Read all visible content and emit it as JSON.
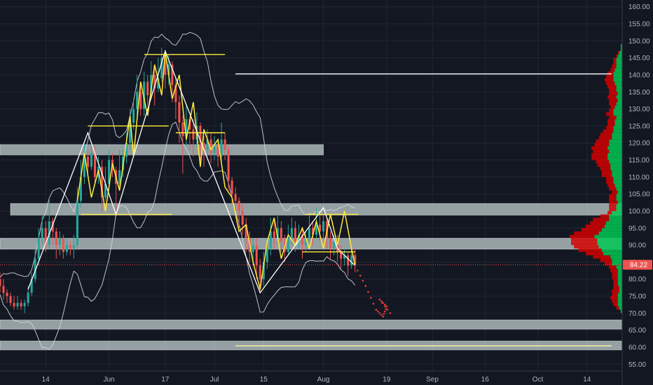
{
  "chart_data": {
    "type": "candlestick",
    "ylim": [
      53,
      162
    ],
    "y_ticks": [
      "55.00",
      "60.00",
      "65.00",
      "70.00",
      "75.00",
      "80.00",
      "85.00",
      "90.00",
      "95.00",
      "100.00",
      "105.00",
      "110.00",
      "115.00",
      "120.00",
      "125.00",
      "130.00",
      "135.00",
      "140.00",
      "145.00",
      "150.00",
      "155.00",
      "160.00"
    ],
    "x_ticks": [
      {
        "label": "14",
        "day": 13
      },
      {
        "label": "Jun",
        "day": 31
      },
      {
        "label": "17",
        "day": 47
      },
      {
        "label": "Jul",
        "day": 61
      },
      {
        "label": "15",
        "day": 75
      },
      {
        "label": "Aug",
        "day": 92
      },
      {
        "label": "19",
        "day": 110
      },
      {
        "label": "Sep",
        "day": 123
      },
      {
        "label": "16",
        "day": 138
      },
      {
        "label": "Oct",
        "day": 153
      },
      {
        "label": "14",
        "day": 167
      }
    ],
    "x_domain": [
      0,
      177
    ],
    "last_price": "84.22",
    "colors": {
      "up": "#26a69a",
      "down": "#ef5350",
      "background": "#131722",
      "grid": "#232632",
      "zone": "#c8d6d6",
      "trend": "#ffeb3b",
      "bands": "#d1d4dc",
      "projection": "#e53935",
      "volume_up": "#00c853",
      "volume_down": "#d50000"
    },
    "zones": [
      {
        "low": 116.5,
        "high": 119.5,
        "from": 0,
        "to": 92
      },
      {
        "low": 98.8,
        "high": 102.2,
        "from": 3,
        "to": 177
      },
      {
        "low": 88.8,
        "high": 92.0,
        "from": 0,
        "to": 177
      },
      {
        "low": 65.3,
        "high": 68.0,
        "from": 0,
        "to": 177
      },
      {
        "low": 59.2,
        "high": 61.8,
        "from": 0,
        "to": 177
      }
    ],
    "levels": [
      {
        "price": 140.3,
        "from": 67,
        "to": 174,
        "color": "#ffffff"
      },
      {
        "price": 60.4,
        "from": 67,
        "to": 174,
        "color": "#fff59d"
      }
    ],
    "candles": [
      [
        0,
        80,
        78,
        82,
        76
      ],
      [
        1,
        78,
        76,
        80,
        74
      ],
      [
        2,
        76,
        75,
        77,
        73
      ],
      [
        3,
        75,
        73,
        76,
        72
      ],
      [
        4,
        73,
        72,
        75,
        71
      ],
      [
        5,
        72,
        73,
        75,
        71
      ],
      [
        6,
        73,
        72,
        74,
        71
      ],
      [
        7,
        72,
        73,
        74,
        70
      ],
      [
        8,
        73,
        76,
        78,
        72
      ],
      [
        9,
        76,
        80,
        82,
        75
      ],
      [
        10,
        80,
        86,
        89,
        79
      ],
      [
        11,
        86,
        92,
        95,
        84
      ],
      [
        12,
        92,
        95,
        99,
        90
      ],
      [
        13,
        95,
        90,
        97,
        88
      ],
      [
        14,
        90,
        97,
        104,
        89
      ],
      [
        15,
        97,
        94,
        98,
        90
      ],
      [
        16,
        94,
        90,
        95,
        86
      ],
      [
        17,
        90,
        92,
        94,
        87
      ],
      [
        18,
        92,
        88,
        93,
        86
      ],
      [
        19,
        88,
        90,
        92,
        87
      ],
      [
        20,
        90,
        89,
        91,
        87
      ],
      [
        21,
        89,
        90,
        93,
        86
      ],
      [
        22,
        90,
        103,
        107,
        89
      ],
      [
        23,
        103,
        110,
        115,
        101
      ],
      [
        24,
        110,
        116,
        120,
        108
      ],
      [
        25,
        116,
        113,
        118,
        110
      ],
      [
        26,
        113,
        117,
        120,
        112
      ],
      [
        27,
        117,
        110,
        119,
        108
      ],
      [
        28,
        110,
        113,
        116,
        108
      ],
      [
        29,
        113,
        104,
        115,
        100
      ],
      [
        30,
        104,
        108,
        113,
        103
      ],
      [
        31,
        108,
        115,
        118,
        106
      ],
      [
        32,
        115,
        112,
        117,
        110
      ],
      [
        33,
        112,
        108,
        113,
        100
      ],
      [
        34,
        108,
        112,
        118,
        107
      ],
      [
        35,
        112,
        116,
        118,
        110
      ],
      [
        36,
        116,
        120,
        123,
        114
      ],
      [
        37,
        120,
        126,
        130,
        118
      ],
      [
        38,
        126,
        130,
        133,
        124
      ],
      [
        39,
        130,
        135,
        140,
        128
      ],
      [
        40,
        135,
        130,
        138,
        128
      ],
      [
        41,
        130,
        138,
        141,
        128
      ],
      [
        42,
        138,
        134,
        140,
        131
      ],
      [
        43,
        134,
        140,
        144,
        133
      ],
      [
        44,
        140,
        136,
        142,
        131
      ],
      [
        45,
        136,
        139,
        145,
        135
      ],
      [
        46,
        139,
        145,
        148,
        138
      ],
      [
        47,
        145,
        140,
        146,
        136
      ],
      [
        48,
        140,
        143,
        146,
        137
      ],
      [
        49,
        143,
        137,
        144,
        132
      ],
      [
        50,
        137,
        132,
        139,
        127
      ],
      [
        51,
        132,
        126,
        134,
        120
      ],
      [
        52,
        126,
        122,
        128,
        111
      ],
      [
        53,
        122,
        127,
        131,
        119
      ],
      [
        54,
        127,
        124,
        128,
        118
      ],
      [
        55,
        124,
        121,
        127,
        116
      ],
      [
        56,
        121,
        125,
        129,
        119
      ],
      [
        57,
        125,
        120,
        126,
        115
      ],
      [
        58,
        120,
        118,
        122,
        113
      ],
      [
        59,
        118,
        121,
        124,
        116
      ],
      [
        60,
        121,
        117,
        123,
        114
      ],
      [
        61,
        117,
        119,
        122,
        115
      ],
      [
        62,
        119,
        116,
        121,
        113
      ],
      [
        63,
        116,
        121,
        126,
        114
      ],
      [
        64,
        121,
        118,
        123,
        115
      ],
      [
        65,
        118,
        109,
        119,
        106
      ],
      [
        66,
        109,
        105,
        110,
        102
      ],
      [
        67,
        105,
        103,
        107,
        100
      ],
      [
        68,
        103,
        100,
        104,
        95
      ],
      [
        69,
        100,
        96,
        102,
        93
      ],
      [
        70,
        96,
        92,
        98,
        88
      ],
      [
        71,
        92,
        88,
        94,
        85
      ],
      [
        72,
        88,
        90,
        92,
        84
      ],
      [
        73,
        90,
        84,
        92,
        80
      ],
      [
        74,
        84,
        80,
        86,
        76
      ],
      [
        75,
        80,
        85,
        88,
        78
      ],
      [
        76,
        85,
        89,
        92,
        83
      ],
      [
        77,
        89,
        94,
        98,
        87
      ],
      [
        78,
        94,
        92,
        97,
        89
      ],
      [
        79,
        92,
        95,
        99,
        90
      ],
      [
        80,
        95,
        91,
        97,
        88
      ],
      [
        81,
        91,
        88,
        93,
        85
      ],
      [
        82,
        88,
        92,
        96,
        87
      ],
      [
        83,
        92,
        95,
        98,
        90
      ],
      [
        84,
        95,
        91,
        97,
        88
      ],
      [
        85,
        91,
        93,
        96,
        89
      ],
      [
        86,
        93,
        90,
        95,
        86
      ],
      [
        87,
        90,
        92,
        94,
        88
      ],
      [
        88,
        92,
        95,
        99,
        91
      ],
      [
        89,
        95,
        93,
        97,
        90
      ],
      [
        90,
        93,
        96,
        101,
        92
      ],
      [
        91,
        96,
        94,
        99,
        91
      ],
      [
        92,
        94,
        97,
        100,
        92
      ],
      [
        93,
        97,
        92,
        98,
        89
      ],
      [
        94,
        92,
        89,
        94,
        86
      ],
      [
        95,
        89,
        91,
        93,
        87
      ],
      [
        96,
        91,
        88,
        93,
        85
      ],
      [
        97,
        88,
        86,
        90,
        83
      ],
      [
        98,
        86,
        87,
        89,
        84
      ],
      [
        99,
        87,
        84,
        88,
        81
      ],
      [
        100,
        84,
        87,
        90,
        83
      ],
      [
        101,
        87,
        84,
        89,
        82
      ]
    ]
  }
}
